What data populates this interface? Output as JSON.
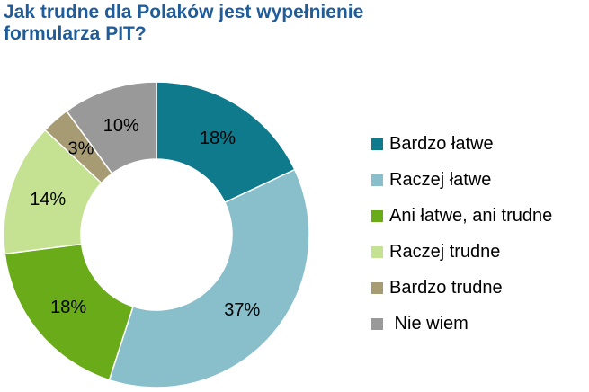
{
  "chart_data": {
    "type": "pie",
    "variant": "donut",
    "title": [
      "Jak trudne dla Polaków jest wypełnienie",
      "formularza PIT?"
    ],
    "categories": [
      "Bardzo łatwe",
      "Raczej łatwe",
      "Ani łatwe, ani trudne",
      "Raczej trudne",
      "Bardzo trudne",
      "Nie wiem"
    ],
    "values": [
      18,
      37,
      18,
      14,
      3,
      10
    ],
    "data_labels": [
      "18%",
      "37%",
      "18%",
      "14%",
      "3%",
      "10%"
    ],
    "colors": [
      "#0e7a8c",
      "#88bfca",
      "#6aab1a",
      "#c4e291",
      "#a79b74",
      "#999999"
    ],
    "legend_position": "right",
    "legend_labels": [
      "Bardzo łatwe",
      "Raczej łatwe",
      "Ani łatwe, ani trudne",
      "Raczej trudne",
      "Bardzo trudne",
      " Nie wiem"
    ],
    "start_angle_deg": 0,
    "direction": "clockwise"
  }
}
